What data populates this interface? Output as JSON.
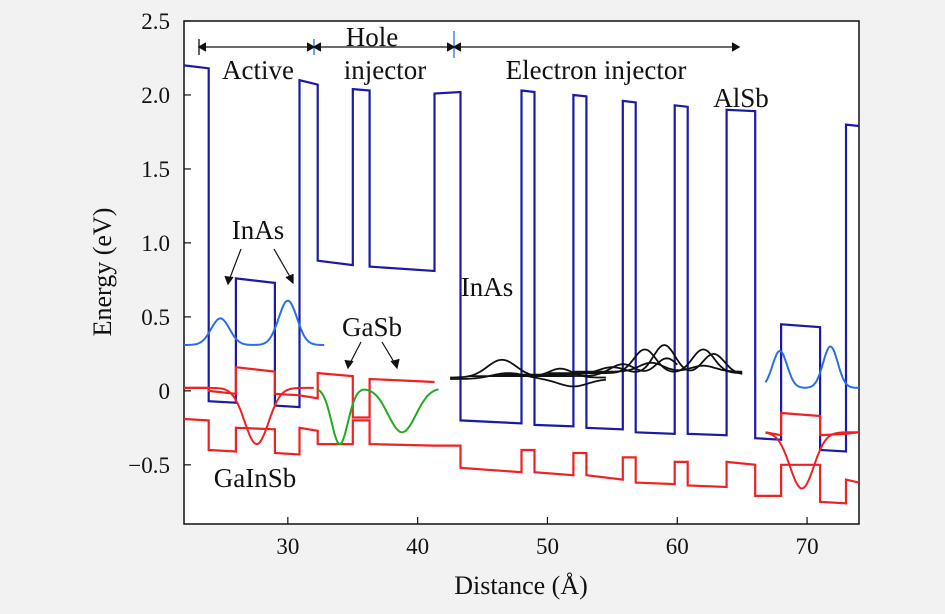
{
  "chart_data": {
    "type": "line",
    "xlabel": "Distance (Å)",
    "ylabel": "Energy (eV)",
    "xlim": [
      22,
      74
    ],
    "ylim": [
      -0.9,
      2.5
    ],
    "x_ticks": [
      30,
      40,
      50,
      60,
      70
    ],
    "y_ticks": [
      {
        "value": 2.5,
        "label": "2.5"
      },
      {
        "value": 2.0,
        "label": "2.0"
      },
      {
        "value": 1.5,
        "label": "1.5"
      },
      {
        "value": 1.0,
        "label": "1.0"
      },
      {
        "value": 0.5,
        "label": "0.5"
      },
      {
        "value": 0,
        "label": "0"
      },
      {
        "value": -0.5,
        "label": "−0.5"
      }
    ],
    "colors": {
      "conduction_band": "#1a1aa6",
      "valence_band": "#ee2222",
      "electron_wavefunction": "#2a6fe6",
      "hole_wavefunction": "#22aa22",
      "electron_injector_states": "#111111",
      "annotation": "#111111"
    },
    "series": [
      {
        "key": "conduction_band",
        "points": [
          [
            22,
            2.2
          ],
          [
            23.9,
            2.18
          ],
          [
            23.9,
            -0.07
          ],
          [
            26,
            -0.08
          ],
          [
            26,
            0.76
          ],
          [
            29,
            0.73
          ],
          [
            29,
            -0.1
          ],
          [
            30.9,
            -0.11
          ],
          [
            30.9,
            2.1
          ],
          [
            32.3,
            2.07
          ],
          [
            32.3,
            0.88
          ],
          [
            35,
            0.85
          ],
          [
            35,
            2.04
          ],
          [
            36.3,
            2.03
          ],
          [
            36.3,
            0.84
          ],
          [
            41.3,
            0.81
          ],
          [
            41.3,
            2.01
          ],
          [
            43.3,
            2.02
          ],
          [
            43.3,
            -0.2
          ],
          [
            48,
            -0.22
          ],
          [
            48,
            2.03
          ],
          [
            49,
            2.02
          ],
          [
            49,
            -0.23
          ],
          [
            52,
            -0.24
          ],
          [
            52,
            2.0
          ],
          [
            53,
            1.99
          ],
          [
            53,
            -0.25
          ],
          [
            55.8,
            -0.26
          ],
          [
            55.8,
            1.96
          ],
          [
            56.8,
            1.95
          ],
          [
            56.8,
            -0.28
          ],
          [
            59.8,
            -0.29
          ],
          [
            59.8,
            1.93
          ],
          [
            60.8,
            1.92
          ],
          [
            60.8,
            -0.29
          ],
          [
            63.8,
            -0.3
          ],
          [
            63.8,
            1.9
          ],
          [
            66,
            1.89
          ],
          [
            66,
            -0.32
          ],
          [
            68,
            -0.33
          ],
          [
            68,
            0.45
          ],
          [
            71,
            0.43
          ],
          [
            71,
            -0.4
          ],
          [
            73,
            -0.41
          ],
          [
            73,
            1.8
          ],
          [
            74,
            1.79
          ]
        ]
      },
      {
        "key": "valence_band",
        "points": [
          [
            22,
            -0.19
          ],
          [
            23.9,
            -0.2
          ],
          [
            23.9,
            -0.4
          ],
          [
            26,
            -0.41
          ],
          [
            26,
            -0.25
          ],
          [
            29,
            -0.26
          ],
          [
            29,
            -0.42
          ],
          [
            30.9,
            -0.43
          ],
          [
            30.9,
            -0.25
          ],
          [
            32.3,
            -0.27
          ],
          [
            32.3,
            -0.36
          ],
          [
            35,
            -0.36
          ],
          [
            35,
            -0.2
          ],
          [
            36.3,
            -0.2
          ],
          [
            36.3,
            -0.36
          ],
          [
            41.3,
            -0.37
          ],
          [
            41.3,
            -0.37
          ],
          [
            43.3,
            -0.37
          ],
          [
            43.3,
            -0.52
          ],
          [
            48,
            -0.55
          ],
          [
            48,
            -0.4
          ],
          [
            49,
            -0.4
          ],
          [
            49,
            -0.55
          ],
          [
            52,
            -0.57
          ],
          [
            52,
            -0.42
          ],
          [
            53,
            -0.42
          ],
          [
            53,
            -0.57
          ],
          [
            55.8,
            -0.6
          ],
          [
            55.8,
            -0.45
          ],
          [
            56.8,
            -0.45
          ],
          [
            56.8,
            -0.62
          ],
          [
            59.8,
            -0.63
          ],
          [
            59.8,
            -0.48
          ],
          [
            60.8,
            -0.48
          ],
          [
            60.8,
            -0.64
          ],
          [
            63.8,
            -0.65
          ],
          [
            63.8,
            -0.48
          ],
          [
            66,
            -0.5
          ],
          [
            66,
            -0.71
          ],
          [
            68,
            -0.71
          ],
          [
            68,
            -0.5
          ],
          [
            71,
            -0.5
          ],
          [
            71,
            -0.75
          ],
          [
            73,
            -0.76
          ],
          [
            73,
            -0.6
          ],
          [
            74,
            -0.62
          ]
        ]
      },
      {
        "key": "valence_band_active_and_hole_injector_well",
        "points": [
          [
            22,
            0.02
          ],
          [
            23.9,
            0.02
          ],
          [
            23.9,
            0.0
          ],
          [
            26,
            -0.02
          ],
          [
            26,
            0.16
          ],
          [
            29,
            0.13
          ],
          [
            29,
            -0.02
          ],
          [
            30.9,
            -0.03
          ],
          [
            30.9,
            -0.03
          ],
          [
            32.3,
            -0.05
          ],
          [
            32.3,
            0.12
          ],
          [
            35,
            0.1
          ],
          [
            35,
            -0.18
          ],
          [
            36.3,
            -0.18
          ],
          [
            36.3,
            0.08
          ],
          [
            41.3,
            0.06
          ],
          [
            41.3,
            0.06
          ]
        ]
      },
      {
        "key": "valence_band_right_well",
        "points": [
          [
            66.8,
            -0.28
          ],
          [
            68,
            -0.3
          ],
          [
            68,
            -0.15
          ],
          [
            71,
            -0.17
          ],
          [
            71,
            -0.3
          ],
          [
            73,
            -0.29
          ],
          [
            74,
            -0.28
          ]
        ]
      }
    ]
  },
  "annotations": {
    "active": "Active",
    "hole": "Hole",
    "injector": "injector",
    "electron_injector": "Electron injector",
    "alsb": "AlSb",
    "inas_left": "InAs",
    "inas_right": "InAs",
    "gasb": "GaSb",
    "gainsb": "GaInSb"
  }
}
